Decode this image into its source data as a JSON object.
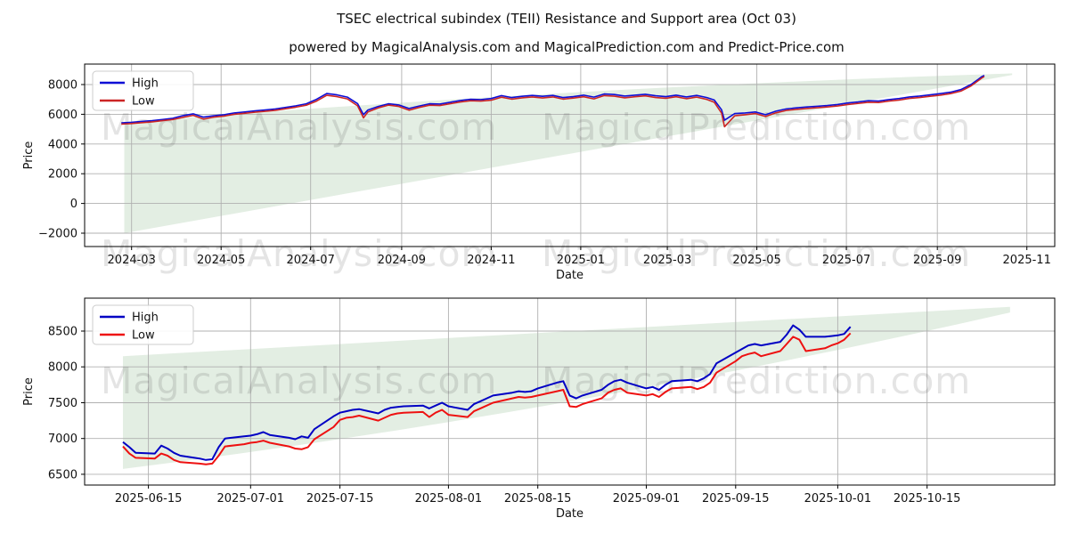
{
  "figure": {
    "title": "TSEC electrical subindex (TEII) Resistance and Support area (Oct 03)",
    "subtitle": "powered by MagicalAnalysis.com and MagicalPrediction.com and Predict-Price.com",
    "background": "#ffffff"
  },
  "watermarks": {
    "left_text": "MagicalAnalysis.com",
    "right_text": "MagicalPrediction.com"
  },
  "colors": {
    "grid": "#b0b0b0",
    "spine": "#000000",
    "band": "#e3eee3",
    "legend_border": "#cccccc",
    "legend_fill": "#ffffff"
  },
  "chart_data": [
    {
      "type": "line",
      "id": "full-history",
      "xlabel": "Date",
      "ylabel": "Price",
      "grid": true,
      "legend_position": "upper left",
      "legend": [
        {
          "label": "High",
          "color": "#0e0ed6"
        },
        {
          "label": "Low",
          "color": "#cc2525"
        }
      ],
      "xlim": [
        "2024-01-29",
        "2025-11-20"
      ],
      "ylim": [
        -2900,
        9380
      ],
      "yticks": [
        -2000,
        0,
        2000,
        4000,
        6000,
        8000
      ],
      "xticks": [
        "2024-03-01",
        "2024-05-01",
        "2024-07-01",
        "2024-09-01",
        "2024-11-01",
        "2025-01-01",
        "2025-03-01",
        "2025-05-01",
        "2025-07-01",
        "2025-09-01",
        "2025-11-01"
      ],
      "xtick_labels": [
        "2024-03",
        "2024-05",
        "2024-07",
        "2024-09",
        "2024-11",
        "2025-01",
        "2025-03",
        "2025-05",
        "2025-07",
        "2025-09",
        "2025-11"
      ],
      "band": {
        "start": "2024-02-25",
        "end": "2025-10-22",
        "top_start": 5450,
        "top_ctrl": 7800,
        "top_end": 8750,
        "bottom_start": -2000,
        "bottom_ctrl": 3325,
        "bottom_end": 8650
      },
      "series": {
        "dates": [
          "2024-02-23",
          "2024-03-01",
          "2024-03-08",
          "2024-03-15",
          "2024-03-22",
          "2024-03-29",
          "2024-04-05",
          "2024-04-12",
          "2024-04-19",
          "2024-04-26",
          "2024-05-03",
          "2024-05-10",
          "2024-05-17",
          "2024-05-24",
          "2024-05-31",
          "2024-06-07",
          "2024-06-14",
          "2024-06-21",
          "2024-06-28",
          "2024-07-05",
          "2024-07-12",
          "2024-07-19",
          "2024-07-26",
          "2024-08-02",
          "2024-08-06",
          "2024-08-09",
          "2024-08-16",
          "2024-08-23",
          "2024-08-30",
          "2024-09-06",
          "2024-09-13",
          "2024-09-20",
          "2024-09-27",
          "2024-10-04",
          "2024-10-11",
          "2024-10-18",
          "2024-10-25",
          "2024-11-01",
          "2024-11-08",
          "2024-11-15",
          "2024-11-22",
          "2024-11-29",
          "2024-12-06",
          "2024-12-13",
          "2024-12-20",
          "2024-12-27",
          "2025-01-03",
          "2025-01-10",
          "2025-01-17",
          "2025-01-24",
          "2025-01-31",
          "2025-02-07",
          "2025-02-14",
          "2025-02-21",
          "2025-02-28",
          "2025-03-07",
          "2025-03-14",
          "2025-03-21",
          "2025-03-28",
          "2025-04-02",
          "2025-04-07",
          "2025-04-09",
          "2025-04-16",
          "2025-04-23",
          "2025-04-30",
          "2025-05-07",
          "2025-05-14",
          "2025-05-21",
          "2025-05-28",
          "2025-06-04",
          "2025-06-11",
          "2025-06-18",
          "2025-06-25",
          "2025-07-02",
          "2025-07-09",
          "2025-07-16",
          "2025-07-23",
          "2025-07-30",
          "2025-08-06",
          "2025-08-13",
          "2025-08-20",
          "2025-08-27",
          "2025-09-03",
          "2025-09-10",
          "2025-09-17",
          "2025-09-24",
          "2025-09-29",
          "2025-10-01",
          "2025-10-03"
        ],
        "high": [
          5420,
          5460,
          5520,
          5570,
          5650,
          5730,
          5910,
          6030,
          5810,
          5900,
          5970,
          6090,
          6160,
          6230,
          6290,
          6360,
          6460,
          6570,
          6710,
          7010,
          7400,
          7310,
          7160,
          6720,
          5980,
          6290,
          6530,
          6710,
          6630,
          6390,
          6560,
          6710,
          6690,
          6810,
          6930,
          7010,
          6990,
          7060,
          7260,
          7130,
          7210,
          7270,
          7210,
          7270,
          7130,
          7190,
          7290,
          7160,
          7370,
          7330,
          7230,
          7290,
          7350,
          7250,
          7190,
          7290,
          7170,
          7270,
          7130,
          6960,
          6310,
          5600,
          6050,
          6090,
          6160,
          5970,
          6210,
          6360,
          6430,
          6490,
          6540,
          6590,
          6660,
          6760,
          6830,
          6910,
          6890,
          6990,
          7060,
          7170,
          7230,
          7310,
          7390,
          7490,
          7660,
          8010,
          8360,
          8510,
          8620
        ],
        "low": [
          5340,
          5380,
          5440,
          5490,
          5570,
          5650,
          5800,
          5930,
          5680,
          5810,
          5880,
          6000,
          6070,
          6140,
          6200,
          6270,
          6370,
          6480,
          6610,
          6890,
          7280,
          7190,
          7040,
          6570,
          5760,
          6160,
          6430,
          6620,
          6530,
          6280,
          6460,
          6610,
          6590,
          6710,
          6830,
          6910,
          6890,
          6950,
          7150,
          7020,
          7110,
          7170,
          7100,
          7170,
          7020,
          7090,
          7180,
          7040,
          7260,
          7220,
          7110,
          7180,
          7240,
          7130,
          7080,
          7180,
          7050,
          7160,
          7000,
          6810,
          6080,
          5160,
          5900,
          5970,
          6050,
          5850,
          6100,
          6260,
          6330,
          6390,
          6440,
          6490,
          6560,
          6660,
          6730,
          6810,
          6790,
          6890,
          6960,
          7070,
          7130,
          7210,
          7290,
          7390,
          7560,
          7910,
          8270,
          8420,
          8540
        ]
      }
    },
    {
      "type": "line",
      "id": "recent-detail",
      "xlabel": "Date",
      "ylabel": "Price",
      "grid": true,
      "legend_position": "upper left",
      "legend": [
        {
          "label": "High",
          "color": "#0101c4"
        },
        {
          "label": "Low",
          "color": "#ee1111"
        }
      ],
      "xlim": [
        "2025-06-05",
        "2025-11-04"
      ],
      "ylim": [
        6350,
        8960
      ],
      "yticks": [
        6500,
        7000,
        7500,
        8000,
        8500
      ],
      "xticks": [
        "2025-06-15",
        "2025-07-01",
        "2025-07-15",
        "2025-08-01",
        "2025-08-15",
        "2025-09-01",
        "2025-09-15",
        "2025-10-01",
        "2025-10-15"
      ],
      "xtick_labels": [
        "2025-06-15",
        "2025-07-01",
        "2025-07-15",
        "2025-08-01",
        "2025-08-15",
        "2025-09-01",
        "2025-09-15",
        "2025-10-01",
        "2025-10-15"
      ],
      "band": {
        "start": "2025-06-11",
        "end": "2025-10-28",
        "top_start": 8150,
        "top_ctrl": 8495,
        "top_end": 8840,
        "bottom_start": 6575,
        "bottom_ctrl": 7350,
        "bottom_end": 8760
      },
      "series": {
        "dates": [
          "2025-06-11",
          "2025-06-12",
          "2025-06-13",
          "2025-06-16",
          "2025-06-17",
          "2025-06-18",
          "2025-06-19",
          "2025-06-20",
          "2025-06-23",
          "2025-06-24",
          "2025-06-25",
          "2025-06-26",
          "2025-06-27",
          "2025-06-30",
          "2025-07-01",
          "2025-07-02",
          "2025-07-03",
          "2025-07-04",
          "2025-07-07",
          "2025-07-08",
          "2025-07-09",
          "2025-07-10",
          "2025-07-11",
          "2025-07-14",
          "2025-07-15",
          "2025-07-16",
          "2025-07-17",
          "2025-07-18",
          "2025-07-21",
          "2025-07-22",
          "2025-07-23",
          "2025-07-24",
          "2025-07-25",
          "2025-07-28",
          "2025-07-29",
          "2025-07-30",
          "2025-07-31",
          "2025-08-01",
          "2025-08-04",
          "2025-08-05",
          "2025-08-06",
          "2025-08-07",
          "2025-08-08",
          "2025-08-11",
          "2025-08-12",
          "2025-08-13",
          "2025-08-14",
          "2025-08-15",
          "2025-08-18",
          "2025-08-19",
          "2025-08-20",
          "2025-08-21",
          "2025-08-22",
          "2025-08-25",
          "2025-08-26",
          "2025-08-27",
          "2025-08-28",
          "2025-08-29",
          "2025-09-01",
          "2025-09-02",
          "2025-09-03",
          "2025-09-04",
          "2025-09-05",
          "2025-09-08",
          "2025-09-09",
          "2025-09-10",
          "2025-09-11",
          "2025-09-12",
          "2025-09-15",
          "2025-09-16",
          "2025-09-17",
          "2025-09-18",
          "2025-09-19",
          "2025-09-22",
          "2025-09-23",
          "2025-09-24",
          "2025-09-25",
          "2025-09-26",
          "2025-09-29",
          "2025-09-30",
          "2025-10-01",
          "2025-10-02",
          "2025-10-03"
        ],
        "high": [
          6950,
          6880,
          6800,
          6790,
          6900,
          6860,
          6800,
          6760,
          6720,
          6700,
          6710,
          6880,
          7000,
          7030,
          7040,
          7060,
          7090,
          7050,
          7010,
          6990,
          7030,
          7010,
          7130,
          7310,
          7360,
          7380,
          7400,
          7410,
          7350,
          7400,
          7430,
          7440,
          7450,
          7460,
          7420,
          7460,
          7500,
          7450,
          7400,
          7480,
          7520,
          7560,
          7600,
          7640,
          7660,
          7650,
          7660,
          7700,
          7780,
          7800,
          7600,
          7560,
          7600,
          7680,
          7750,
          7800,
          7820,
          7780,
          7700,
          7720,
          7680,
          7750,
          7800,
          7820,
          7800,
          7840,
          7900,
          8050,
          8200,
          8250,
          8300,
          8320,
          8300,
          8350,
          8450,
          8580,
          8520,
          8420,
          8420,
          8430,
          8440,
          8460,
          8560
        ],
        "low": [
          6890,
          6790,
          6730,
          6720,
          6790,
          6760,
          6700,
          6670,
          6650,
          6640,
          6650,
          6760,
          6890,
          6920,
          6940,
          6950,
          6970,
          6940,
          6890,
          6860,
          6850,
          6880,
          6990,
          7160,
          7260,
          7290,
          7300,
          7320,
          7250,
          7290,
          7330,
          7350,
          7360,
          7370,
          7300,
          7360,
          7400,
          7330,
          7300,
          7380,
          7420,
          7460,
          7500,
          7560,
          7580,
          7570,
          7580,
          7600,
          7660,
          7680,
          7450,
          7440,
          7480,
          7560,
          7640,
          7680,
          7700,
          7640,
          7600,
          7620,
          7580,
          7650,
          7700,
          7720,
          7690,
          7720,
          7780,
          7920,
          8080,
          8150,
          8180,
          8200,
          8150,
          8220,
          8320,
          8420,
          8380,
          8220,
          8260,
          8300,
          8330,
          8380,
          8470
        ]
      }
    }
  ]
}
